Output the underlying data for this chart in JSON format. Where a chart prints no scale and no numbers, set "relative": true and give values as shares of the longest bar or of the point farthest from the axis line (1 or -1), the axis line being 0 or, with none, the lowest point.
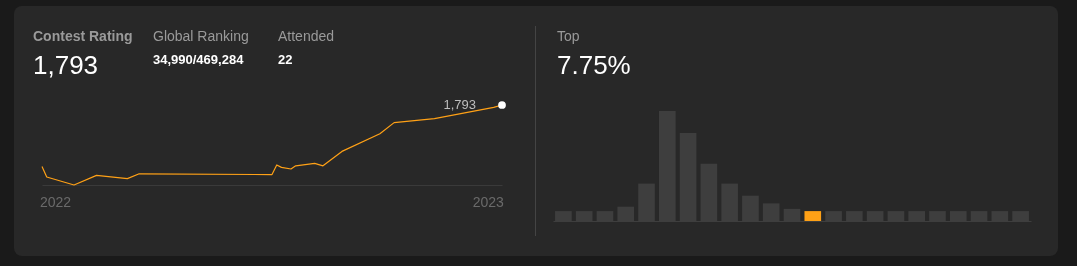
{
  "chart_data": [
    {
      "type": "line",
      "title": "Contest Rating",
      "subtitle": "1,793",
      "relative": true,
      "x": [
        "2021-12-21",
        "2021-12-25",
        "2022-01-17",
        "2022-02-05",
        "2022-03-03",
        "2022-03-13",
        "2022-07-03",
        "2022-07-07",
        "2022-07-11",
        "2022-07-19",
        "2022-07-23",
        "2022-08-08",
        "2022-08-15",
        "2022-08-31",
        "2022-10-02",
        "2022-10-14",
        "2022-11-17",
        "2023-01-06",
        "2023-01-13"
      ],
      "xlim": [
        "2021-12-21",
        "2023-01-13"
      ],
      "xticks": [
        "2022",
        "2023"
      ],
      "series": [
        {
          "color": "#ffa116",
          "values": [
            0.23,
            0.1,
            0,
            0.12,
            0.08,
            0.14,
            0.13,
            0.25,
            0.22,
            0.2,
            0.24,
            0.27,
            0.24,
            0.42,
            0.64,
            0.78,
            0.83,
            0.97,
            1
          ]
        }
      ],
      "annotations": [
        "Global Ranking",
        "34,990/469,284",
        "Attended",
        "22",
        {
          "text": "1,793",
          "x": "2023-01-13",
          "y": 1
        }
      ]
    },
    {
      "type": "bar",
      "title": "Top",
      "subtitle": "7.75%",
      "relative": true,
      "categories": [
        null,
        null,
        null,
        null,
        null,
        null,
        null,
        null,
        null,
        null,
        null,
        null,
        null,
        null,
        null,
        null,
        null,
        null,
        null,
        null,
        null,
        null,
        null
      ],
      "values": [
        0.09,
        0.09,
        0.09,
        0.13,
        0.34,
        1,
        0.8,
        0.52,
        0.34,
        0.23,
        0.16,
        0.11,
        0.09,
        0.09,
        0.09,
        0.09,
        0.09,
        0.09,
        0.09,
        0.09,
        0.09,
        0.09,
        0.09
      ],
      "colors": [
        "#3e3e3e",
        "#3e3e3e",
        "#3e3e3e",
        "#3e3e3e",
        "#3e3e3e",
        "#3e3e3e",
        "#3e3e3e",
        "#3e3e3e",
        "#3e3e3e",
        "#3e3e3e",
        "#3e3e3e",
        "#3e3e3e",
        "#ffa116",
        "#3e3e3e",
        "#3e3e3e",
        "#3e3e3e",
        "#3e3e3e",
        "#3e3e3e",
        "#3e3e3e",
        "#3e3e3e",
        "#3e3e3e",
        "#3e3e3e",
        "#3e3e3e"
      ]
    }
  ]
}
